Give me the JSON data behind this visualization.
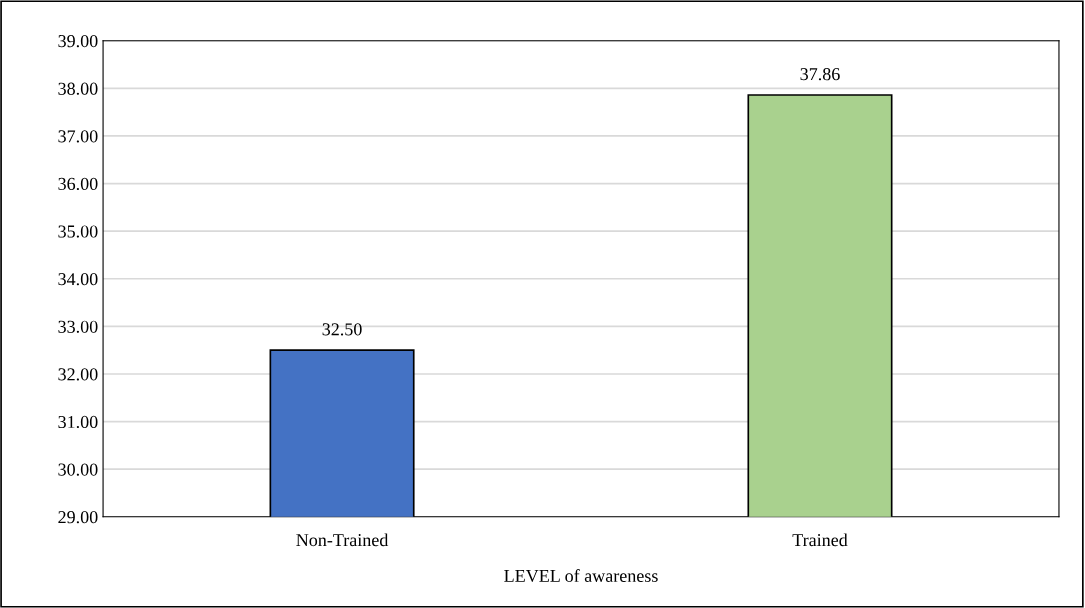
{
  "chart_data": {
    "type": "bar",
    "xlabel": "LEVEL of awareness",
    "categories": [
      "Non-Trained",
      "Trained"
    ],
    "values": [
      32.5,
      37.86
    ],
    "colors": [
      "#4472c4",
      "#a9d18e"
    ],
    "value_labels": [
      "32.50",
      "37.86"
    ],
    "ylim": [
      29,
      39
    ],
    "yticks": [
      {
        "value": 29,
        "label": "29.00"
      },
      {
        "value": 30,
        "label": "30.00"
      },
      {
        "value": 31,
        "label": "31.00"
      },
      {
        "value": 32,
        "label": "32.00"
      },
      {
        "value": 33,
        "label": "33.00"
      },
      {
        "value": 34,
        "label": "34.00"
      },
      {
        "value": 35,
        "label": "35.00"
      },
      {
        "value": 36,
        "label": "36.00"
      },
      {
        "value": 37,
        "label": "37.00"
      },
      {
        "value": 38,
        "label": "38.00"
      },
      {
        "value": 39,
        "label": "39.00"
      }
    ],
    "grid": "y"
  }
}
